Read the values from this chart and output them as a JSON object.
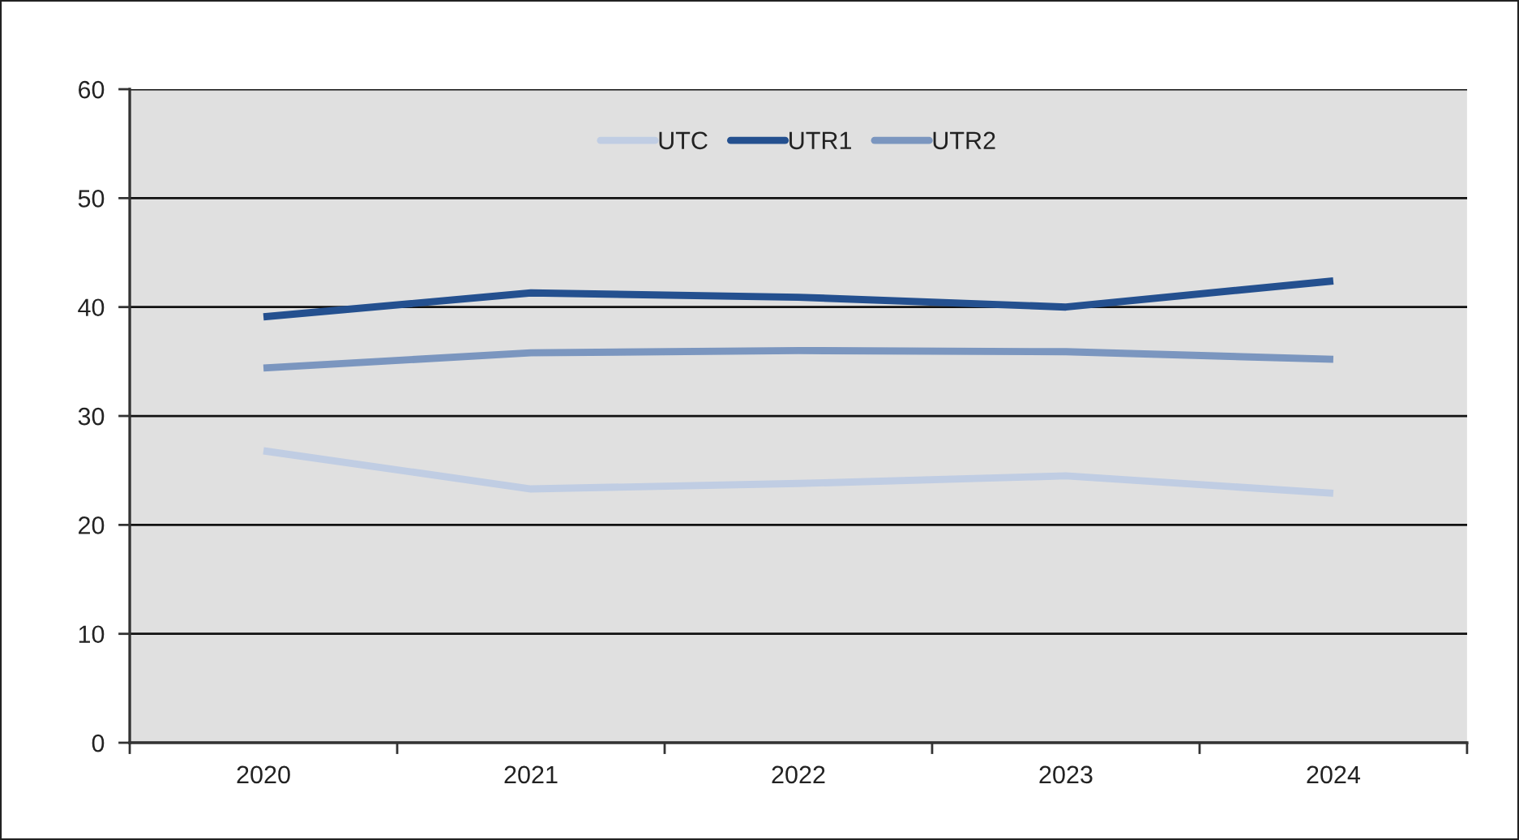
{
  "chart_data": {
    "type": "line",
    "categories": [
      "2020",
      "2021",
      "2022",
      "2023",
      "2024"
    ],
    "series": [
      {
        "name": "UTC",
        "color": "#c0cde3",
        "values": [
          26.8,
          23.3,
          23.8,
          24.5,
          22.9
        ]
      },
      {
        "name": "UTR1",
        "color": "#24508f",
        "values": [
          39.1,
          41.3,
          40.9,
          40.0,
          42.4
        ]
      },
      {
        "name": "UTR2",
        "color": "#7b96bf",
        "values": [
          34.4,
          35.8,
          36.0,
          35.9,
          35.2
        ]
      }
    ],
    "ylim": [
      0,
      60
    ],
    "yticks": [
      0,
      10,
      20,
      30,
      40,
      50,
      60
    ],
    "grid": "y",
    "legend": "top",
    "marker": "none",
    "line_style": "solid"
  }
}
